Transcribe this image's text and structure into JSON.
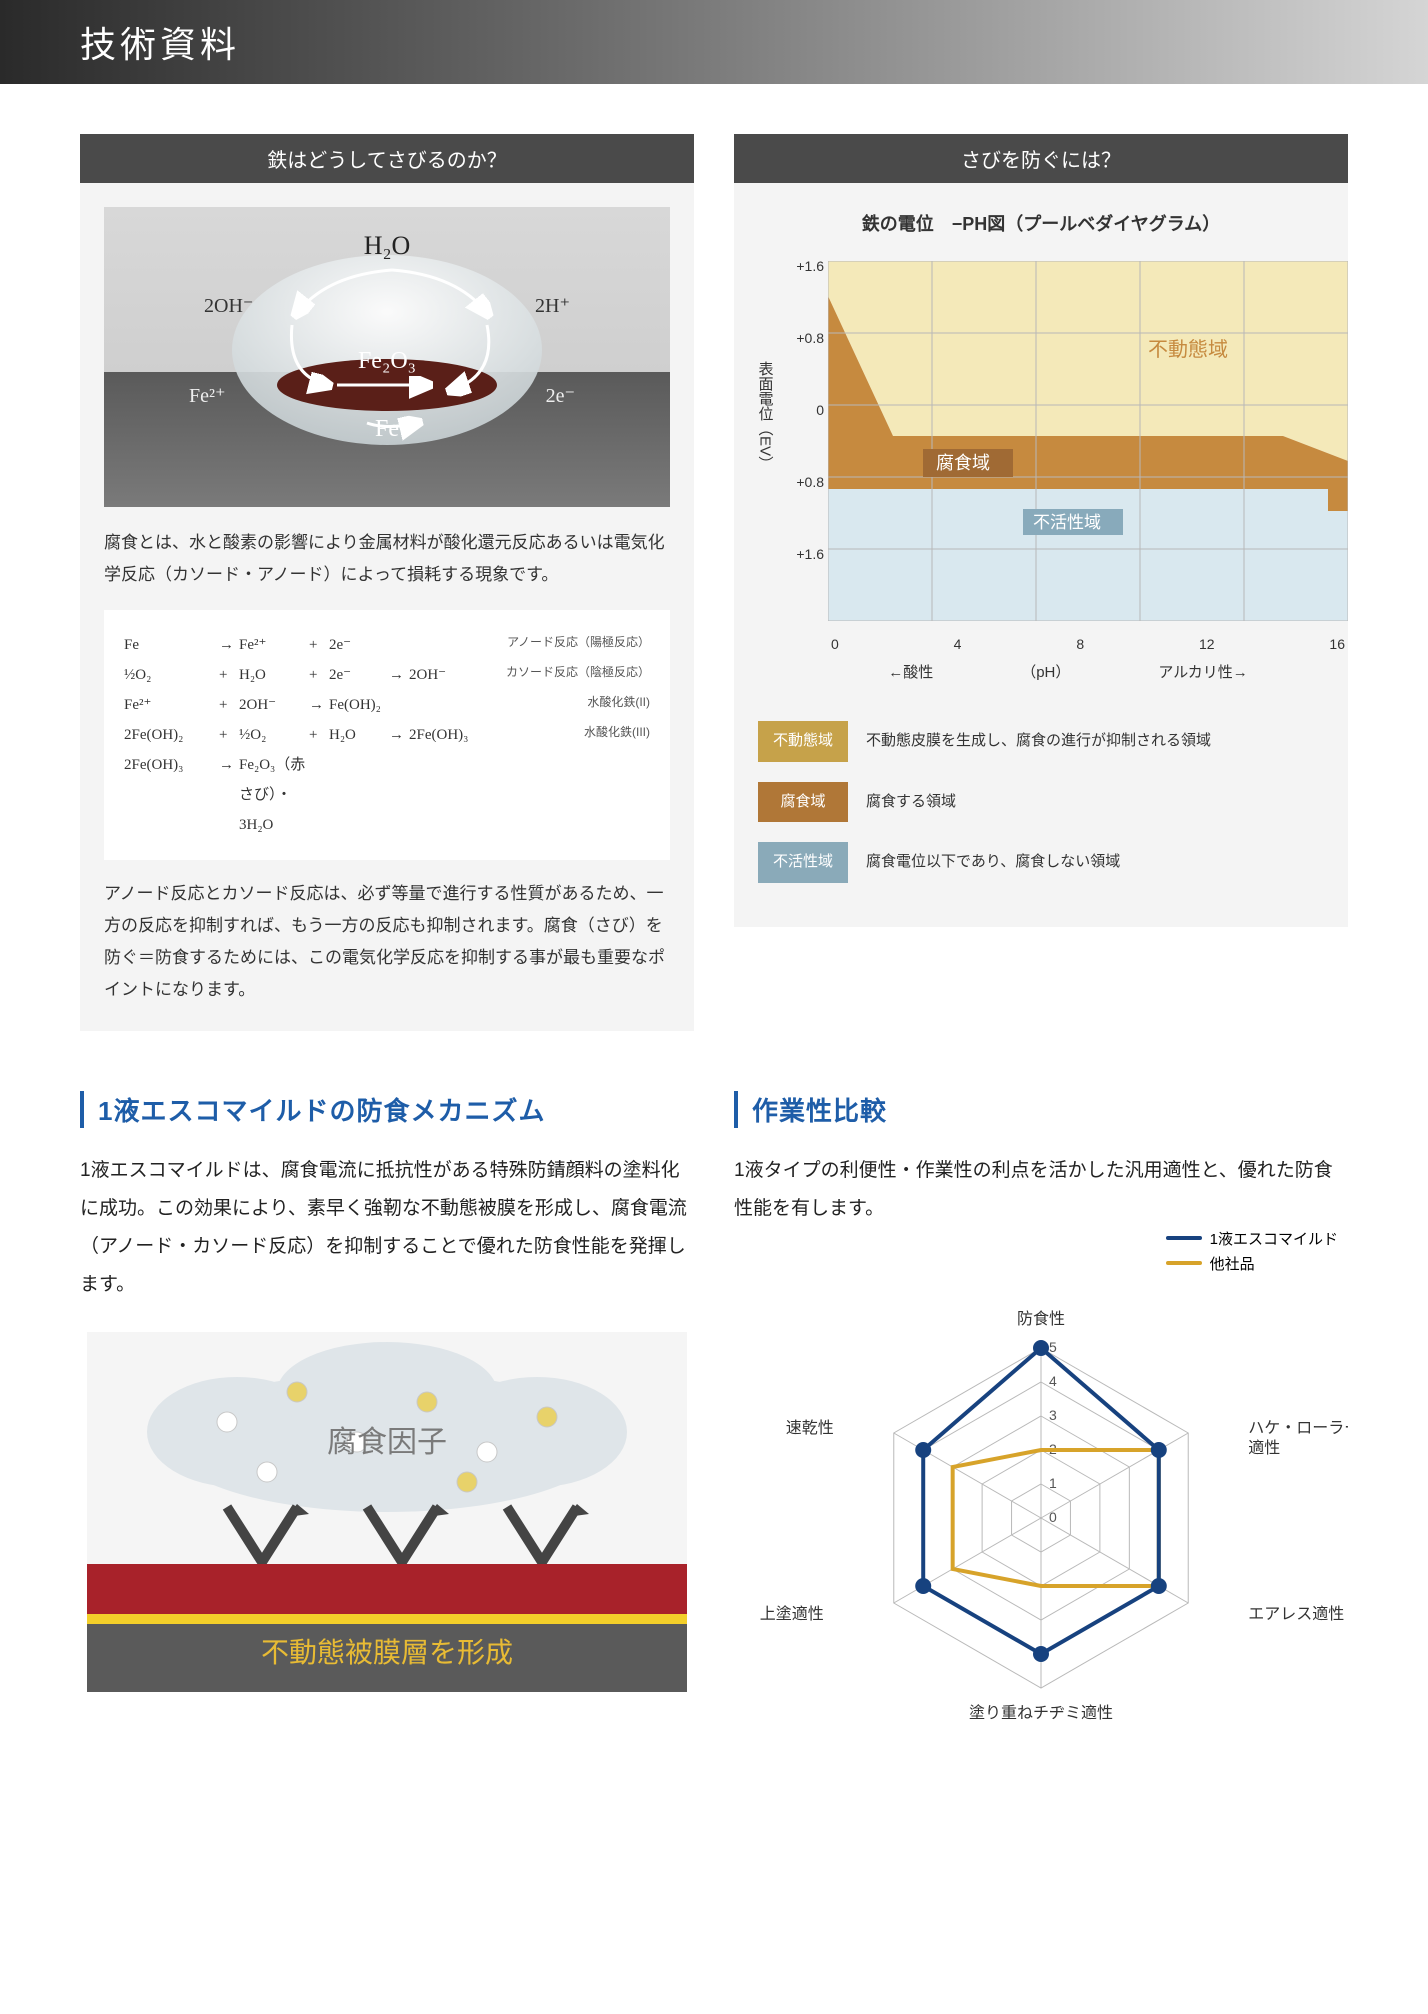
{
  "header": {
    "title": "技術資料"
  },
  "panelA": {
    "title": "鉄はどうしてさびるのか？",
    "intro": "腐食とは、水と酸素の影響により金属材料が酸化還元反応あるいは電気化学反応（カソード・アノード）によって損耗する現象です。",
    "diagram": {
      "H2O": "H₂O",
      "2OHm": "2OH⁻",
      "2Hp": "2H⁺",
      "Fe2O3": "Fe₂O₃",
      "Fe2p": "Fe²⁺",
      "2em": "2e⁻",
      "Fe": "Fe"
    },
    "reactions": [
      {
        "l": "Fe",
        "a": "→",
        "b": "Fe²⁺",
        "c": "+",
        "d": "2e⁻",
        "e": "",
        "f": "",
        "note": "アノード反応（陽極反応）"
      },
      {
        "l": "½O₂",
        "a": "+",
        "b": "H₂O",
        "c": "+",
        "d": "2e⁻",
        "e": "→",
        "f": "2OH⁻",
        "note": "カソード反応（陰極反応）"
      },
      {
        "l": "Fe²⁺",
        "a": "+",
        "b": "2OH⁻",
        "c": "→",
        "d": "Fe(OH)₂",
        "e": "",
        "f": "",
        "note": "水酸化鉄(II)"
      },
      {
        "l": "2Fe(OH)₂",
        "a": "+",
        "b": "½O₂",
        "c": "+",
        "d": "H₂O",
        "e": "→",
        "f": "2Fe(OH)₃",
        "note": "水酸化鉄(III)"
      },
      {
        "l": "2Fe(OH)₃",
        "a": "→",
        "b": "Fe₂O₃（赤さび）・3H₂O",
        "c": "",
        "d": "",
        "e": "",
        "f": "",
        "note": ""
      }
    ],
    "outro": "アノード反応とカソード反応は、必ず等量で進行する性質があるため、一方の反応を抑制すれば、もう一方の反応も抑制されます。腐食（さび）を防ぐ＝防食するためには、この電気化学反応を抑制する事が最も重要なポイントになります。"
  },
  "panelB": {
    "title": "さびを防ぐには？",
    "chart": {
      "title": "鉄の電位　−PH図（プールベダイヤグラム）",
      "ylabel": "表面電位（EV）",
      "yticks": [
        "+1.6",
        "+0.8",
        "0",
        "+0.8",
        "+1.6"
      ],
      "xticks": [
        "0",
        "4",
        "8",
        "12",
        "16"
      ],
      "axisLabel": {
        "left": "酸性",
        "center": "（pH）",
        "right": "アルカリ性"
      },
      "regions": {
        "passive": {
          "label": "不動態域",
          "fill": "#f4e9b9"
        },
        "corrosion": {
          "label": "腐食域",
          "fill": "#c68a3f"
        },
        "immune": {
          "label": "不活性域",
          "fill": "#d9e8ef"
        }
      },
      "bg": "#eeeeee",
      "grid": "#b8b8b8",
      "regionLabelColors": {
        "passive": "#c68a3f",
        "corrosion": "#ffffff",
        "immune": "#ffffff"
      },
      "regionLabelBg": {
        "passive": "none",
        "corrosion": "#a06a34",
        "immune": "#88aabb"
      }
    },
    "legend": [
      {
        "chip": "不動態域",
        "bg": "#c6a24a",
        "text": "不動態皮膜を生成し、腐食の進行が抑制される領域"
      },
      {
        "chip": "腐食域",
        "bg": "#b07737",
        "text": "腐食する領域"
      },
      {
        "chip": "不活性域",
        "bg": "#8aaab9",
        "text": "腐食電位以下であり、腐食しない領域"
      }
    ]
  },
  "sectionC": {
    "heading": "1液エスコマイルドの防食メカニズム",
    "body": "1液エスコマイルドは、腐食電流に抵抗性がある特殊防錆顔料の塗料化に成功。この効果により、素早く強靭な不動態被膜を形成し、腐食電流（アノード・カソード反応）を抑制することで優れた防食性能を発揮します。",
    "diagram": {
      "cloud": "腐食因子",
      "layer": "不動態被膜層を形成",
      "colors": {
        "cloud": "#dfe5e9",
        "cloudLbl": "#7a7a7a",
        "bandTop": "#a8222a",
        "bandMid": "#f3cf2a",
        "bandBot": "#5a5a5a",
        "layerLbl": "#e8bb34"
      }
    }
  },
  "sectionD": {
    "heading": "作業性比較",
    "body": "1液タイプの利便性・作業性の利点を活かした汎用適性と、優れた防食性能を有します。",
    "radar": {
      "type": "radar",
      "max": 5,
      "rticks": [
        0,
        1,
        2,
        3,
        4,
        5
      ],
      "axes": [
        "防食性",
        "ハケ・ローラー適性",
        "エアレス適性",
        "塗り重ねチヂミ適性",
        "上塗適性",
        "速乾性"
      ],
      "series": [
        {
          "name": "1液エスコマイルド",
          "color": "#17427f",
          "values": [
            5,
            4,
            4,
            4,
            4,
            4
          ],
          "marker": "circle",
          "lw": 4
        },
        {
          "name": "他社品",
          "color": "#d7a32a",
          "values": [
            2,
            4,
            4,
            2,
            3,
            3
          ],
          "marker": "none",
          "lw": 4
        }
      ],
      "gridColor": "#b9b9b9",
      "tickFont": 14,
      "labelFont": 16
    }
  }
}
